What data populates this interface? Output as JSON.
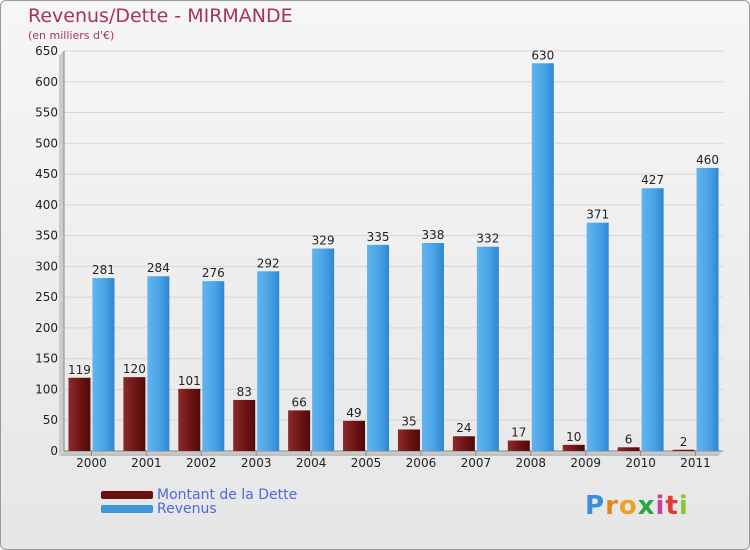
{
  "title": "Revenus/Dette - MIRMANDE",
  "subtitle": "(en milliers d'€)",
  "logo": "Proxiti",
  "colors": {
    "dette": "#7a1a1a",
    "revenus": "#4aa3e6",
    "title": "#a8325a",
    "legend_text": "#4a6adf"
  },
  "chart_data": {
    "type": "bar",
    "title": "Revenus/Dette - MIRMANDE",
    "subtitle": "(en milliers d'€)",
    "categories": [
      "2000",
      "2001",
      "2002",
      "2003",
      "2004",
      "2005",
      "2006",
      "2007",
      "2008",
      "2009",
      "2010",
      "2011"
    ],
    "series": [
      {
        "name": "Montant de la Dette",
        "values": [
          119,
          120,
          101,
          83,
          66,
          49,
          35,
          24,
          17,
          10,
          6,
          2
        ]
      },
      {
        "name": "Revenus",
        "values": [
          281,
          284,
          276,
          292,
          329,
          335,
          338,
          332,
          630,
          371,
          427,
          460
        ]
      }
    ],
    "ylim": [
      0,
      650
    ],
    "yticks": [
      0,
      50,
      100,
      150,
      200,
      250,
      300,
      350,
      400,
      450,
      500,
      550,
      600,
      650
    ],
    "grid": true,
    "legend": "bottom-left"
  }
}
